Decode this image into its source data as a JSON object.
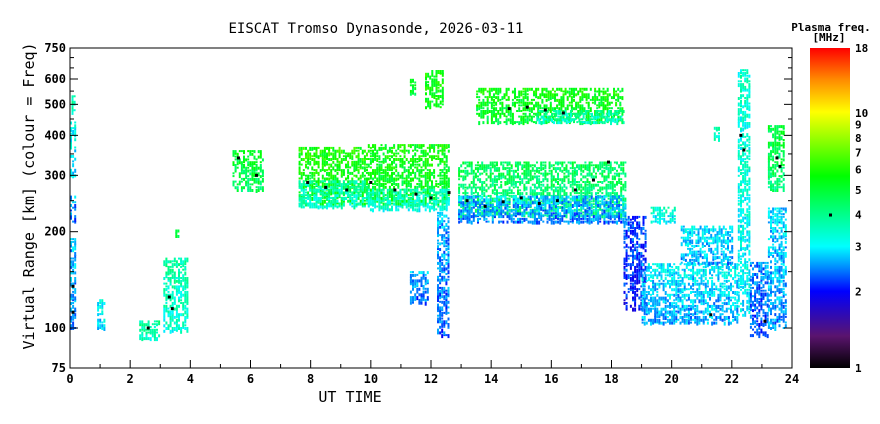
{
  "chart_data": {
    "type": "scatter",
    "title": "EISCAT Tromso Dynasonde, 2026-03-11",
    "xlabel": "UT TIME",
    "ylabel": "Virtual Range [km] (colour = Freq)",
    "xlim": [
      0,
      24
    ],
    "ylim": [
      75,
      750
    ],
    "yscale": "log",
    "xticks": [
      "0",
      "2",
      "4",
      "6",
      "8",
      "10",
      "12",
      "14",
      "16",
      "18",
      "20",
      "22",
      "24"
    ],
    "yticks": [
      "75",
      "100",
      "200",
      "300",
      "400",
      "500",
      "600",
      "750"
    ],
    "colorbar": {
      "title": "Plasma freq.",
      "units": "[MHz]",
      "range": [
        1,
        18
      ],
      "scale": "log",
      "ticks": [
        "1",
        "2",
        "3",
        "4",
        "5",
        "6",
        "7",
        "8",
        "9",
        "10",
        "18"
      ],
      "marker_value": 4
    },
    "echo_clusters": [
      {
        "t": [
          0.0,
          0.15
        ],
        "h": [
          100,
          190
        ],
        "f": 2.4
      },
      {
        "t": [
          0.0,
          0.15
        ],
        "h": [
          215,
          260
        ],
        "f": 2.3
      },
      {
        "t": [
          0.0,
          0.15
        ],
        "h": [
          300,
          440
        ],
        "f": 2.8
      },
      {
        "t": [
          0.05,
          0.15
        ],
        "h": [
          470,
          540
        ],
        "f": 3.4
      },
      {
        "t": [
          0.9,
          1.15
        ],
        "h": [
          100,
          125
        ],
        "f": 2.8
      },
      {
        "t": [
          2.3,
          2.95
        ],
        "h": [
          93,
          105
        ],
        "f": 3.4
      },
      {
        "t": [
          3.1,
          3.9
        ],
        "h": [
          98,
          165
        ],
        "f": 3.3
      },
      {
        "t": [
          3.5,
          3.6
        ],
        "h": [
          190,
          205
        ],
        "f": 4.5
      },
      {
        "t": [
          5.4,
          6.4
        ],
        "h": [
          270,
          360
        ],
        "f": 4.5
      },
      {
        "t": [
          7.6,
          9.9
        ],
        "h": [
          245,
          370
        ],
        "f": 5.2
      },
      {
        "t": [
          7.6,
          9.9
        ],
        "h": [
          240,
          290
        ],
        "f": 3.4
      },
      {
        "t": [
          9.9,
          12.6
        ],
        "h": [
          245,
          380
        ],
        "f": 5.0
      },
      {
        "t": [
          9.9,
          12.6
        ],
        "h": [
          235,
          275
        ],
        "f": 3.3
      },
      {
        "t": [
          11.3,
          11.5
        ],
        "h": [
          540,
          600
        ],
        "f": 4.8
      },
      {
        "t": [
          11.8,
          12.4
        ],
        "h": [
          490,
          640
        ],
        "f": 5.2
      },
      {
        "t": [
          12.2,
          12.6
        ],
        "h": [
          95,
          230
        ],
        "f": 2.3
      },
      {
        "t": [
          11.3,
          11.9
        ],
        "h": [
          120,
          150
        ],
        "f": 2.3
      },
      {
        "t": [
          12.9,
          18.5
        ],
        "h": [
          225,
          330
        ],
        "f": 4.0
      },
      {
        "t": [
          12.9,
          18.5
        ],
        "h": [
          215,
          260
        ],
        "f": 2.4
      },
      {
        "t": [
          13.5,
          18.4
        ],
        "h": [
          440,
          570
        ],
        "f": 5.0
      },
      {
        "t": [
          15.5,
          18.4
        ],
        "h": [
          440,
          480
        ],
        "f": 3.4
      },
      {
        "t": [
          18.4,
          19.1
        ],
        "h": [
          115,
          225
        ],
        "f": 2.0
      },
      {
        "t": [
          19.0,
          22.2
        ],
        "h": [
          104,
          160
        ],
        "f": 2.6
      },
      {
        "t": [
          19.3,
          20.1
        ],
        "h": [
          215,
          240
        ],
        "f": 3.0
      },
      {
        "t": [
          20.3,
          22.0
        ],
        "h": [
          160,
          210
        ],
        "f": 2.6
      },
      {
        "t": [
          21.4,
          21.6
        ],
        "h": [
          390,
          430
        ],
        "f": 3.5
      },
      {
        "t": [
          22.2,
          22.6
        ],
        "h": [
          110,
          650
        ],
        "f": 3.0
      },
      {
        "t": [
          22.6,
          23.2
        ],
        "h": [
          95,
          160
        ],
        "f": 2.2
      },
      {
        "t": [
          23.2,
          23.7
        ],
        "h": [
          270,
          430
        ],
        "f": 4.3
      },
      {
        "t": [
          23.2,
          23.8
        ],
        "h": [
          100,
          240
        ],
        "f": 2.5
      }
    ],
    "trace_points": [
      [
        0.1,
        112
      ],
      [
        0.1,
        135
      ],
      [
        3.4,
        115
      ],
      [
        3.3,
        125
      ],
      [
        2.6,
        100
      ],
      [
        5.6,
        340
      ],
      [
        6.2,
        300
      ],
      [
        7.9,
        285
      ],
      [
        8.5,
        275
      ],
      [
        9.2,
        270
      ],
      [
        10.0,
        285
      ],
      [
        10.8,
        270
      ],
      [
        11.5,
        262
      ],
      [
        12.0,
        255
      ],
      [
        12.6,
        265
      ],
      [
        13.2,
        250
      ],
      [
        13.8,
        240
      ],
      [
        14.4,
        248
      ],
      [
        15.0,
        255
      ],
      [
        15.6,
        245
      ],
      [
        16.2,
        250
      ],
      [
        16.8,
        270
      ],
      [
        17.4,
        290
      ],
      [
        17.9,
        330
      ],
      [
        14.6,
        485
      ],
      [
        15.2,
        490
      ],
      [
        15.8,
        480
      ],
      [
        16.4,
        470
      ],
      [
        22.3,
        400
      ],
      [
        22.4,
        360
      ],
      [
        23.5,
        340
      ],
      [
        23.6,
        320
      ],
      [
        23.1,
        105
      ],
      [
        21.3,
        110
      ]
    ]
  }
}
